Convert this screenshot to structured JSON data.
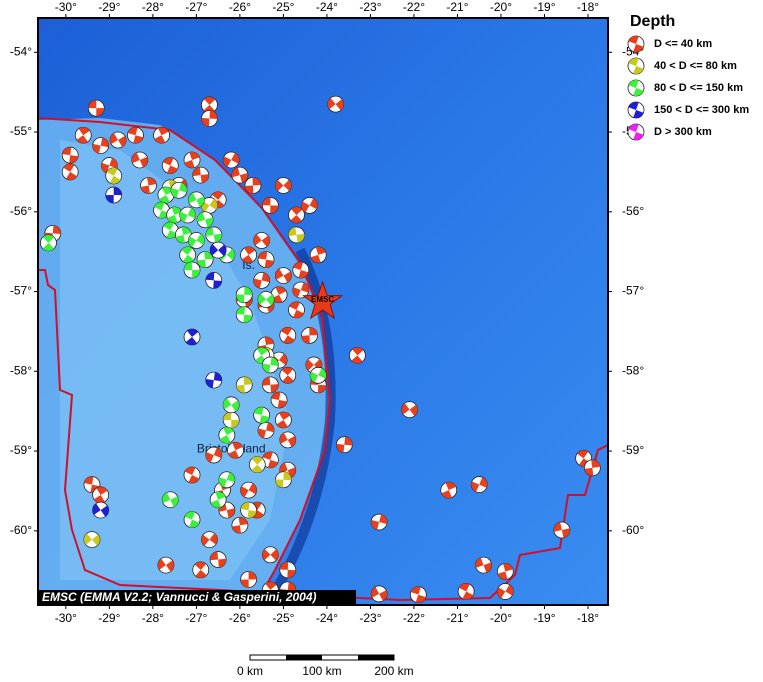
{
  "map": {
    "xlim": [
      -30.64,
      -17.54
    ],
    "ylim": [
      -60.93,
      -53.57
    ],
    "xticks": [
      {
        "value": -30,
        "label": "-30°"
      },
      {
        "value": -29,
        "label": "-29°"
      },
      {
        "value": -28,
        "label": "-28°"
      },
      {
        "value": -27,
        "label": "-27°"
      },
      {
        "value": -26,
        "label": "-26°"
      },
      {
        "value": -25,
        "label": "-25°"
      },
      {
        "value": -24,
        "label": "-24°"
      },
      {
        "value": -23,
        "label": "-23°"
      },
      {
        "value": -22,
        "label": "-22°"
      },
      {
        "value": -21,
        "label": "-21°"
      },
      {
        "value": -20,
        "label": "-20°"
      },
      {
        "value": -19,
        "label": "-19°"
      },
      {
        "value": -18,
        "label": "-18°"
      }
    ],
    "yticks": [
      {
        "value": -54,
        "label": "-54°"
      },
      {
        "value": -55,
        "label": "-55°"
      },
      {
        "value": -56,
        "label": "-56°"
      },
      {
        "value": -57,
        "label": "-57°"
      },
      {
        "value": -58,
        "label": "-58°"
      },
      {
        "value": -59,
        "label": "-59°"
      },
      {
        "value": -60,
        "label": "-60°"
      }
    ],
    "places": [
      {
        "label": "Is.",
        "lon": -25.8,
        "lat": -56.68
      },
      {
        "label": "Bristol Island",
        "lon": -26.2,
        "lat": -58.98
      }
    ],
    "epicenter": {
      "label": "EMSC",
      "lon": -24.1,
      "lat": -57.13
    }
  },
  "legend": {
    "title": "Depth",
    "classes": [
      {
        "label": "D <= 40 km",
        "color": "#e8401c",
        "events": {
          "lon": [
            -29.3,
            -26.7,
            -26.7,
            -23.8,
            -29.9,
            -29.6,
            -29.2,
            -28.8,
            -28.4,
            -27.8,
            -29.0,
            -28.3,
            -27.6,
            -27.1,
            -26.2,
            -26.0,
            -29.9,
            -28.1,
            -27.4,
            -26.9,
            -26.5,
            -25.7,
            -25.0,
            -25.3,
            -24.7,
            -30.3,
            -25.5,
            -25.4,
            -25.8,
            -25.5,
            -25.0,
            -24.6,
            -25.1,
            -24.6,
            -25.4,
            -24.7,
            -24.2,
            -24.4,
            -25.9,
            -24.9,
            -25.4,
            -25.1,
            -25.3,
            -24.9,
            -24.4,
            -24.3,
            -24.2,
            -23.3,
            -23.6,
            -22.1,
            -25.1,
            -25.0,
            -25.4,
            -24.9,
            -25.3,
            -26.1,
            -26.6,
            -24.9,
            -27.1,
            -26.4,
            -25.8,
            -26.3,
            -25.6,
            -26.0,
            -26.7,
            -26.5,
            -26.9,
            -25.8,
            -25.3,
            -24.9,
            -25.3,
            -24.9,
            -27.7,
            -29.4,
            -29.2,
            -22.8,
            -22.8,
            -21.9,
            -21.2,
            -20.5,
            -20.4,
            -20.8,
            -19.9,
            -19.9,
            -18.6,
            -18.1,
            -17.9
          ],
          "lat": [
            -54.7,
            -54.66,
            -54.83,
            -54.65,
            -55.29,
            -55.04,
            -55.17,
            -55.1,
            -55.04,
            -55.04,
            -55.42,
            -55.35,
            -55.42,
            -55.35,
            -55.35,
            -55.54,
            -55.5,
            -55.67,
            -55.67,
            -55.54,
            -55.85,
            -55.67,
            -55.67,
            -55.92,
            -56.04,
            -56.27,
            -56.36,
            -56.6,
            -56.54,
            -56.86,
            -56.8,
            -56.73,
            -57.04,
            -56.98,
            -57.17,
            -57.23,
            -56.54,
            -55.92,
            -57.1,
            -57.55,
            -57.67,
            -57.86,
            -58.17,
            -58.05,
            -57.55,
            -57.92,
            -58.17,
            -57.8,
            -58.92,
            -58.48,
            -58.36,
            -58.61,
            -58.74,
            -58.86,
            -59.11,
            -58.99,
            -59.05,
            -59.24,
            -59.3,
            -59.49,
            -59.49,
            -59.74,
            -59.74,
            -59.93,
            -60.11,
            -60.36,
            -60.49,
            -60.61,
            -60.3,
            -60.49,
            -60.74,
            -60.74,
            -60.43,
            -59.42,
            -59.55,
            -59.89,
            -60.79,
            -60.8,
            -59.49,
            -59.42,
            -60.43,
            -60.76,
            -60.51,
            -60.76,
            -59.99,
            -59.09,
            -59.21
          ]
        }
      },
      {
        "label": "40 < D <= 80 km",
        "color": "#c8c81e",
        "events": {
          "lon": [
            -28.9,
            -27.6,
            -26.7,
            -24.7,
            -25.4,
            -25.9,
            -24.2,
            -26.2,
            -25.6,
            -25.0,
            -29.4,
            -25.8
          ],
          "lat": [
            -55.55,
            -55.7,
            -55.92,
            -56.29,
            -57.8,
            -58.17,
            -58.05,
            -58.61,
            -59.17,
            -59.36,
            -60.11,
            -59.74
          ]
        }
      },
      {
        "label": "80 < D <= 150 km",
        "color": "#3cf03c",
        "events": {
          "lon": [
            -27.7,
            -27.4,
            -27.0,
            -27.8,
            -27.5,
            -27.2,
            -26.8,
            -27.6,
            -27.3,
            -27.0,
            -26.6,
            -27.2,
            -26.8,
            -26.3,
            -27.1,
            -30.4,
            -25.9,
            -25.4,
            -25.9,
            -25.5,
            -25.3,
            -26.2,
            -25.5,
            -26.3,
            -26.3,
            -27.6,
            -27.1,
            -26.5,
            -24.2
          ],
          "lat": [
            -55.79,
            -55.73,
            -55.85,
            -55.98,
            -56.04,
            -56.04,
            -56.1,
            -56.23,
            -56.29,
            -56.36,
            -56.29,
            -56.54,
            -56.6,
            -56.54,
            -56.73,
            -56.39,
            -57.04,
            -57.1,
            -57.29,
            -57.8,
            -57.92,
            -58.42,
            -58.55,
            -58.8,
            -59.36,
            -59.61,
            -59.86,
            -59.61,
            -58.05
          ]
        }
      },
      {
        "label": "150 < D <= 300 km",
        "color": "#2020d0",
        "events": {
          "lon": [
            -28.9,
            -26.5,
            -26.6,
            -27.1,
            -26.6,
            -29.2
          ],
          "lat": [
            -55.79,
            -56.48,
            -56.86,
            -57.57,
            -58.11,
            -59.74
          ]
        }
      },
      {
        "label": "D > 300 km",
        "color": "#f020f0",
        "events": {
          "lon": [],
          "lat": []
        }
      }
    ]
  },
  "attribution": "EMSC (EMMA V2.2; Vannucci & Gasperini, 2004)",
  "scale_bar": {
    "labels": [
      "0 km",
      "100 km",
      "200 km"
    ]
  }
}
